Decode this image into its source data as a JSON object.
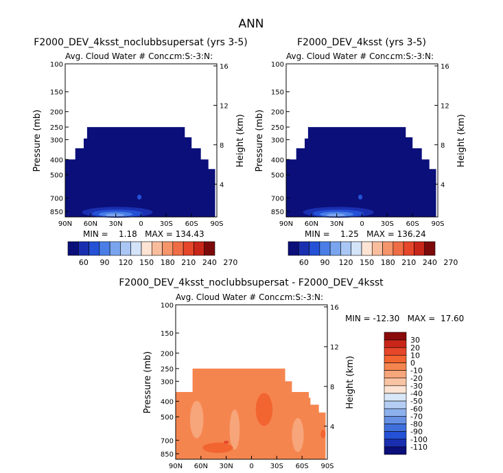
{
  "figure_title": "ANN",
  "chart_data": [
    {
      "type": "heatmap",
      "title": "F2000_DEV_4ksst_noclubbsupersat (yrs 3-5)",
      "subtitle": "Avg. Cloud Water # Conc.",
      "units": "cm:S:-3:N:",
      "xlabel": "",
      "ylabel": "Pressure (mb)",
      "ylabel_right": "Height (km)",
      "x_ticks": [
        "90N",
        "60N",
        "30N",
        "0",
        "30S",
        "60S",
        "90S"
      ],
      "y_ticks": [
        "100",
        "150",
        "200",
        "250",
        "300",
        "400",
        "500",
        "700",
        "850"
      ],
      "y_right_ticks": [
        "16",
        "12",
        "8",
        "4"
      ],
      "stats_text": "MIN =    1.18   MAX = 134.43",
      "min": 1.18,
      "max": 134.43,
      "colorbar_labels": [
        "60",
        "90",
        "120",
        "150",
        "180",
        "210",
        "240",
        "270"
      ],
      "colorbar_colors": [
        "#0b0f7a",
        "#1a2fb0",
        "#2451d6",
        "#4a7ee6",
        "#7aa4ee",
        "#a9c6f4",
        "#d3e3f8",
        "#fde3d3",
        "#f9bd9d",
        "#f5956c",
        "#ef6d45",
        "#e6462a",
        "#c9261a",
        "#7d0a0a"
      ]
    },
    {
      "type": "heatmap",
      "title": "F2000_DEV_4ksst (yrs 3-5)",
      "subtitle": "Avg. Cloud Water # Conc.",
      "units": "cm:S:-3:N:",
      "xlabel": "",
      "ylabel": "Pressure (mb)",
      "ylabel_right": "Height (km)",
      "x_ticks": [
        "90N",
        "60N",
        "30N",
        "0",
        "30S",
        "60S",
        "90S"
      ],
      "y_ticks": [
        "100",
        "150",
        "200",
        "250",
        "300",
        "400",
        "500",
        "700",
        "850"
      ],
      "y_right_ticks": [
        "16",
        "12",
        "8",
        "4"
      ],
      "stats_text": "MIN =    1.25   MAX = 136.24",
      "min": 1.25,
      "max": 136.24,
      "colorbar_labels": [
        "60",
        "90",
        "120",
        "150",
        "180",
        "210",
        "240",
        "270"
      ],
      "colorbar_colors": [
        "#0b0f7a",
        "#1a2fb0",
        "#2451d6",
        "#4a7ee6",
        "#7aa4ee",
        "#a9c6f4",
        "#d3e3f8",
        "#fde3d3",
        "#f9bd9d",
        "#f5956c",
        "#ef6d45",
        "#e6462a",
        "#c9261a",
        "#7d0a0a"
      ]
    },
    {
      "type": "heatmap",
      "title": "F2000_DEV_4ksst_noclubbsupersat - F2000_DEV_4ksst",
      "subtitle": "Avg. Cloud Water # Conc.",
      "units": "cm:S:-3:N:",
      "xlabel": "",
      "ylabel": "Pressure (mb)",
      "ylabel_right": "Height (km)",
      "x_ticks": [
        "90N",
        "60N",
        "30N",
        "0",
        "30S",
        "60S",
        "90S"
      ],
      "y_ticks": [
        "100",
        "150",
        "200",
        "250",
        "300",
        "400",
        "500",
        "700",
        "850"
      ],
      "y_right_ticks": [
        "16",
        "12",
        "8",
        "4"
      ],
      "stats_text": "MIN = -12.30   MAX =  17.60",
      "min": -12.3,
      "max": 17.6,
      "colorbar_labels": [
        "30",
        "20",
        "10",
        "0",
        "-10",
        "-20",
        "-30",
        "-40",
        "-50",
        "-60",
        "-70",
        "-80",
        "-90",
        "-100",
        "-110"
      ],
      "colorbar_colors": [
        "#8b0a0a",
        "#c9261a",
        "#e6462a",
        "#f26430",
        "#f5854f",
        "#f7a57a",
        "#f9c4a3",
        "#fde3d3",
        "#d9e8f8",
        "#b3cdf3",
        "#8cb0ec",
        "#6690e4",
        "#3f6fdb",
        "#2451d6",
        "#1a2fb0",
        "#0b0f7a"
      ]
    }
  ]
}
